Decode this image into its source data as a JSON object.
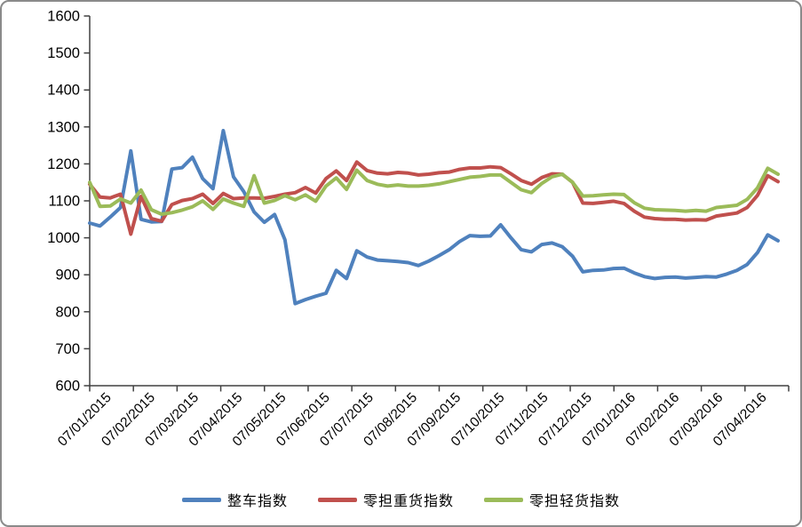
{
  "chart_data": {
    "type": "line",
    "title": "",
    "x_tick_labels": [
      "07/01/2015",
      "07/02/2015",
      "07/03/2015",
      "07/04/2015",
      "07/05/2015",
      "07/06/2015",
      "07/07/2015",
      "07/08/2015",
      "07/09/2015",
      "07/10/2015",
      "07/11/2015",
      "07/12/2015",
      "07/01/2016",
      "07/02/2016",
      "07/03/2016",
      "07/04/2016"
    ],
    "x_frequency": "weekly",
    "ylim": [
      600,
      1600
    ],
    "y_tick_step": 100,
    "y_tick_labels": [
      "600",
      "700",
      "800",
      "900",
      "1000",
      "1100",
      "1200",
      "1300",
      "1400",
      "1500",
      "1600"
    ],
    "grid": false,
    "legend_position": "bottom",
    "axis_color": "#404040",
    "series": [
      {
        "name": "整车指数",
        "color": "#4F81BD",
        "values": [
          1040,
          1032,
          1056,
          1082,
          1235,
          1050,
          1043,
          1044,
          1186,
          1190,
          1218,
          1160,
          1133,
          1290,
          1165,
          1125,
          1070,
          1042,
          1063,
          995,
          822,
          833,
          842,
          850,
          912,
          890,
          965,
          948,
          940,
          938,
          936,
          933,
          925,
          937,
          952,
          968,
          990,
          1006,
          1004,
          1005,
          1035,
          1000,
          968,
          962,
          982,
          986,
          976,
          950,
          908,
          912,
          913,
          917,
          918,
          905,
          895,
          890,
          893,
          894,
          891,
          893,
          895,
          894,
          902,
          912,
          928,
          960,
          1008,
          992
        ]
      },
      {
        "name": "零担重货指数",
        "color": "#C0504D",
        "values": [
          1145,
          1110,
          1108,
          1118,
          1010,
          1112,
          1052,
          1045,
          1090,
          1101,
          1106,
          1118,
          1093,
          1120,
          1106,
          1108,
          1108,
          1107,
          1112,
          1118,
          1122,
          1136,
          1121,
          1160,
          1181,
          1155,
          1205,
          1182,
          1175,
          1173,
          1177,
          1175,
          1170,
          1172,
          1176,
          1178,
          1185,
          1189,
          1189,
          1192,
          1190,
          1173,
          1155,
          1145,
          1163,
          1173,
          1172,
          1150,
          1094,
          1093,
          1096,
          1099,
          1093,
          1072,
          1056,
          1052,
          1050,
          1050,
          1048,
          1049,
          1048,
          1059,
          1063,
          1067,
          1082,
          1115,
          1168,
          1152
        ]
      },
      {
        "name": "零担轻货指数",
        "color": "#9BBB59",
        "values": [
          1150,
          1085,
          1086,
          1105,
          1094,
          1129,
          1076,
          1064,
          1068,
          1075,
          1084,
          1100,
          1077,
          1105,
          1094,
          1085,
          1168,
          1094,
          1101,
          1114,
          1103,
          1116,
          1099,
          1140,
          1162,
          1131,
          1183,
          1155,
          1145,
          1140,
          1143,
          1140,
          1140,
          1142,
          1146,
          1152,
          1158,
          1164,
          1166,
          1170,
          1170,
          1150,
          1130,
          1122,
          1147,
          1165,
          1172,
          1150,
          1113,
          1114,
          1116,
          1118,
          1117,
          1095,
          1080,
          1076,
          1075,
          1074,
          1072,
          1074,
          1072,
          1082,
          1085,
          1088,
          1104,
          1135,
          1188,
          1172
        ]
      }
    ]
  }
}
